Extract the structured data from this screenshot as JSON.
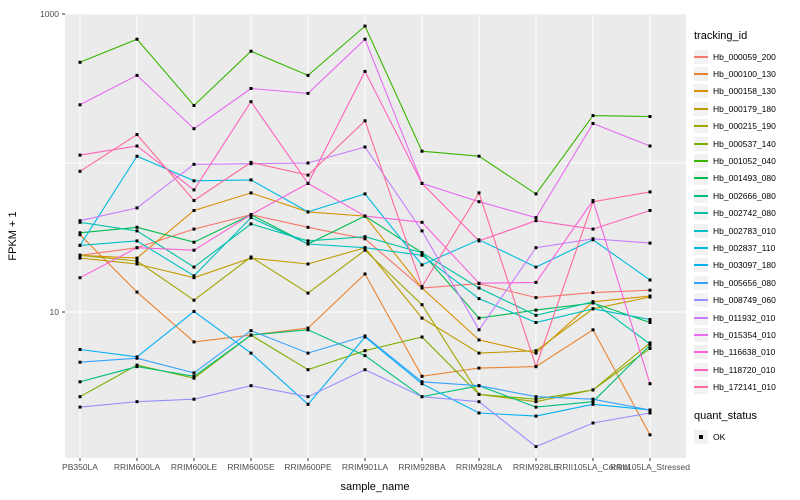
{
  "figure": {
    "panel_background": "#EBEBEB",
    "grid_color": "#FFFFFF",
    "tick_color": "#333333",
    "tick_label_color": "#4D4D4D",
    "point_color": "#000000",
    "point_size": 3
  },
  "chart_data": {
    "type": "line",
    "title": "",
    "xlabel": "sample_name",
    "ylabel": "FPKM + 1",
    "y_scale": "log10",
    "ylim": [
      1,
      1000
    ],
    "grid": true,
    "legend_position": "right",
    "marker": "black-square",
    "y_ticks": [
      {
        "value": 1000,
        "label": "1000"
      },
      {
        "value": 10,
        "label": "10"
      }
    ],
    "y_gridlines": [
      10,
      100,
      1000
    ],
    "categories": [
      "PB350LA",
      "RRIM600LA",
      "RRIM600LE",
      "RRIM600SE",
      "RRIM600PE",
      "RRIM901LA",
      "RRIM928BA",
      "RRIM928LA",
      "RRIM928LE",
      "RRII105LA_Control",
      "RRII105LA_Stressed"
    ],
    "series": [
      {
        "name": "Hb_000059_200",
        "color": "#F8766D",
        "values": [
          24,
          27,
          36,
          45,
          37,
          31,
          14.5,
          15.5,
          12.5,
          13.5,
          14
        ]
      },
      {
        "name": "Hb_000100_130",
        "color": "#EA8331",
        "values": [
          33,
          13.6,
          6.3,
          7.0,
          7.8,
          18,
          3.7,
          4.2,
          4.3,
          7.6,
          1.5
        ]
      },
      {
        "name": "Hb_000158_130",
        "color": "#D89000",
        "values": [
          24,
          23,
          48,
          63,
          47,
          44,
          14.5,
          6.5,
          5.3,
          11.7,
          12.8
        ]
      },
      {
        "name": "Hb_000179_180",
        "color": "#C09B00",
        "values": [
          23,
          21,
          17,
          23,
          21,
          27,
          9.1,
          5.3,
          5.5,
          10.5,
          12.6
        ]
      },
      {
        "name": "Hb_000215_190",
        "color": "#A3A500",
        "values": [
          24,
          22,
          12,
          23.4,
          13.4,
          26,
          11.2,
          2.8,
          2.5,
          3.0,
          6.2
        ]
      },
      {
        "name": "Hb_000537_140",
        "color": "#7CAE00",
        "values": [
          2.7,
          4.4,
          3.6,
          7.0,
          4.1,
          5.5,
          6.8,
          2.8,
          2.6,
          3.0,
          5.7
        ]
      },
      {
        "name": "Hb_001052_040",
        "color": "#39B600",
        "values": [
          474,
          677,
          243,
          563,
          387,
          830,
          120,
          111,
          62,
          208,
          205
        ]
      },
      {
        "name": "Hb_001493_080",
        "color": "#00BB4E",
        "values": [
          34,
          37,
          29.4,
          45,
          28.6,
          44,
          25,
          9.1,
          10.3,
          11.5,
          8.5
        ]
      },
      {
        "name": "Hb_002666_080",
        "color": "#00BF7D",
        "values": [
          3.4,
          4.3,
          3.7,
          7.0,
          7.6,
          5.1,
          2.7,
          3.2,
          2.3,
          2.5,
          6.0
        ]
      },
      {
        "name": "Hb_002742_080",
        "color": "#00C1A3",
        "values": [
          40,
          35,
          20,
          39,
          30,
          32,
          25,
          14.5,
          9.5,
          11.7,
          6.1
        ]
      },
      {
        "name": "Hb_002783_010",
        "color": "#00BFC4",
        "values": [
          28,
          30,
          17.5,
          43,
          28.6,
          27,
          24,
          12.3,
          8.5,
          10.5,
          8.9
        ]
      },
      {
        "name": "Hb_002837_110",
        "color": "#00BAE0",
        "values": [
          28,
          111,
          76,
          77,
          47,
          62,
          20.7,
          30.5,
          20,
          30.5,
          16.4
        ]
      },
      {
        "name": "Hb_003097_180",
        "color": "#00B0F6",
        "values": [
          5.6,
          5.0,
          10.1,
          5.3,
          2.4,
          6.8,
          3.3,
          2.1,
          2.0,
          2.4,
          2.2
        ]
      },
      {
        "name": "Hb_005656_080",
        "color": "#35A2FF",
        "values": [
          4.6,
          4.9,
          3.9,
          7.5,
          5.3,
          6.9,
          3.4,
          3.2,
          2.7,
          2.6,
          2.2
        ]
      },
      {
        "name": "Hb_008749_060",
        "color": "#9590FF",
        "values": [
          2.3,
          2.5,
          2.6,
          3.2,
          2.7,
          4.1,
          2.7,
          2.5,
          1.25,
          1.8,
          2.1
        ]
      },
      {
        "name": "Hb_011932_010",
        "color": "#C77CFF",
        "values": [
          41,
          50,
          98,
          99,
          100,
          128,
          35,
          7.6,
          27,
          31,
          29
        ]
      },
      {
        "name": "Hb_015354_010",
        "color": "#E76BF3",
        "values": [
          246,
          387,
          170,
          316,
          293,
          677,
          73,
          55,
          43,
          184,
          130
        ]
      },
      {
        "name": "Hb_116638_010",
        "color": "#FA62DB",
        "values": [
          17,
          27,
          26,
          45,
          73,
          44,
          40,
          15.6,
          15.8,
          56,
          3.3
        ]
      },
      {
        "name": "Hb_118720_010",
        "color": "#FF62BC",
        "values": [
          113,
          130,
          66,
          258,
          73,
          412,
          73,
          30,
          41,
          36,
          48
        ]
      },
      {
        "name": "Hb_172141_010",
        "color": "#FF6A98",
        "values": [
          88,
          155,
          56,
          101,
          83,
          192,
          14.8,
          63,
          4.3,
          55,
          64
        ]
      }
    ]
  },
  "legend": {
    "title": "tracking_id"
  },
  "quant_legend": {
    "title": "quant_status",
    "items": [
      {
        "label": "OK",
        "marker": "black-square"
      }
    ]
  }
}
